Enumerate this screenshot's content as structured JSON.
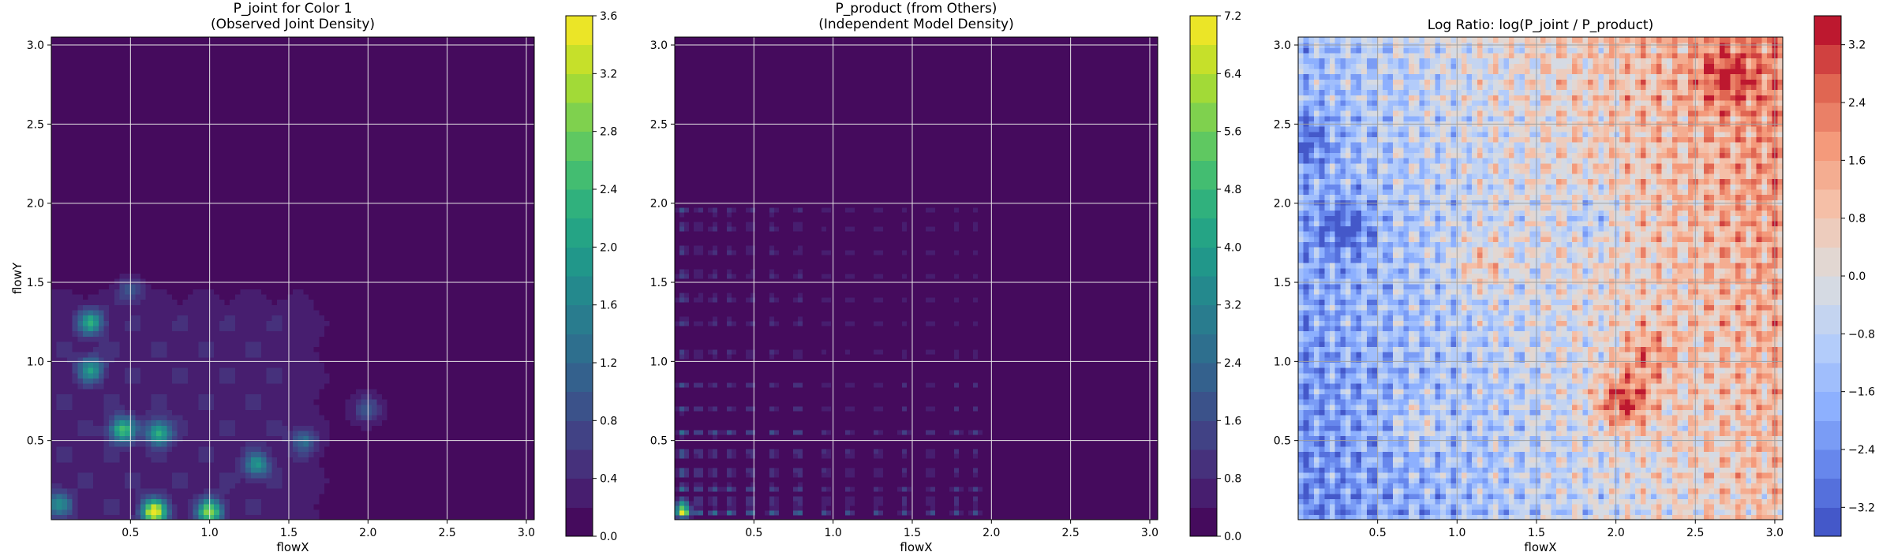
{
  "chart_data": [
    {
      "type": "heatmap",
      "title": "P_joint for Color 1",
      "subtitle": "(Observed Joint Density)",
      "xlabel": "flowX",
      "ylabel": "flowY",
      "xlim": [
        0.0,
        3.05
      ],
      "ylim": [
        0.0,
        3.05
      ],
      "x_ticks": [
        0.5,
        1.0,
        1.5,
        2.0,
        2.5,
        3.0
      ],
      "y_ticks": [
        0.5,
        1.0,
        1.5,
        2.0,
        2.5,
        3.0
      ],
      "grid": true,
      "colormap": "viridis",
      "colorbar": {
        "min": 0.0,
        "max": 3.6,
        "ticks": [
          0.0,
          0.4,
          0.8,
          1.2,
          1.6,
          2.0,
          2.4,
          2.8,
          3.2,
          3.6
        ]
      },
      "hotspots": [
        {
          "x": 0.25,
          "y": 1.25,
          "value": 1.8
        },
        {
          "x": 0.25,
          "y": 0.95,
          "value": 1.6
        },
        {
          "x": 0.45,
          "y": 0.57,
          "value": 2.2
        },
        {
          "x": 0.68,
          "y": 0.55,
          "value": 2.0
        },
        {
          "x": 0.65,
          "y": 0.05,
          "value": 3.3
        },
        {
          "x": 1.0,
          "y": 0.05,
          "value": 2.6
        },
        {
          "x": 1.3,
          "y": 0.35,
          "value": 1.5
        },
        {
          "x": 1.6,
          "y": 0.5,
          "value": 1.0
        },
        {
          "x": 0.05,
          "y": 0.1,
          "value": 1.3
        },
        {
          "x": 0.5,
          "y": 1.45,
          "value": 0.8
        },
        {
          "x": 2.0,
          "y": 0.7,
          "value": 0.8
        }
      ]
    },
    {
      "type": "heatmap",
      "title": "P_product (from Others)",
      "subtitle": "(Independent Model Density)",
      "xlabel": "flowX",
      "ylabel": "",
      "xlim": [
        0.0,
        3.05
      ],
      "ylim": [
        0.0,
        3.05
      ],
      "x_ticks": [
        0.5,
        1.0,
        1.5,
        2.0,
        2.5,
        3.0
      ],
      "y_ticks": [
        0.5,
        1.0,
        1.5,
        2.0,
        2.5,
        3.0
      ],
      "grid": true,
      "colormap": "viridis",
      "colorbar": {
        "min": 0.0,
        "max": 7.2,
        "ticks": [
          0.0,
          0.8,
          1.6,
          2.4,
          3.2,
          4.0,
          4.8,
          5.6,
          6.4,
          7.2
        ]
      },
      "x_peaks": [
        0.05,
        0.15,
        0.25,
        0.35,
        0.48,
        0.62,
        0.78,
        0.95,
        1.1,
        1.28,
        1.45,
        1.62,
        1.78,
        1.9
      ],
      "y_peaks": [
        0.05,
        0.12,
        0.2,
        0.3,
        0.42,
        0.55,
        0.7,
        0.85,
        1.05,
        1.25,
        1.4,
        1.55,
        1.7,
        1.85,
        1.95
      ]
    },
    {
      "type": "heatmap",
      "title": "Log Ratio: log(P_joint / P_product)",
      "xlabel": "flowX",
      "ylabel": "",
      "xlim": [
        0.0,
        3.05
      ],
      "ylim": [
        0.0,
        3.05
      ],
      "x_ticks": [
        0.5,
        1.0,
        1.5,
        2.0,
        2.5,
        3.0
      ],
      "y_ticks": [
        0.5,
        1.0,
        1.5,
        2.0,
        2.5,
        3.0
      ],
      "grid": true,
      "colormap": "coolwarm",
      "colorbar": {
        "min": -3.6,
        "max": 3.6,
        "ticks": [
          -3.2,
          -2.4,
          -1.6,
          -0.8,
          0.0,
          0.8,
          1.6,
          2.4,
          3.2
        ],
        "tick_labels": [
          "−3.2",
          "−2.4",
          "−1.6",
          "−0.8",
          "0.0",
          "0.8",
          "1.6",
          "2.4",
          "3.2"
        ]
      },
      "features": [
        {
          "x": 2.05,
          "y": 0.75,
          "value": 3.0
        },
        {
          "x": 2.2,
          "y": 1.05,
          "value": 1.6
        },
        {
          "x": 2.7,
          "y": 2.8,
          "value": 1.8
        },
        {
          "x": 1.15,
          "y": 1.6,
          "value": 1.4
        },
        {
          "x": 0.75,
          "y": 0.6,
          "value": 1.0
        },
        {
          "x": 0.3,
          "y": 1.85,
          "value": -2.0
        },
        {
          "x": 0.05,
          "y": 2.4,
          "value": -1.6
        },
        {
          "x": 1.85,
          "y": 1.9,
          "value": -1.2
        }
      ]
    }
  ]
}
